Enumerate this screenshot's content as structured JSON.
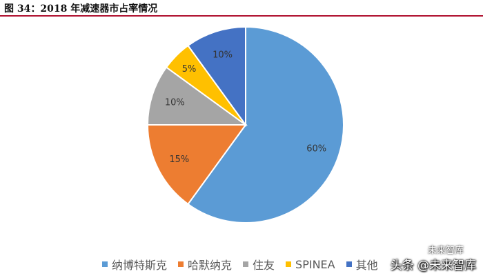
{
  "title": "图 34：2018 年减速器市占率情况",
  "chart_data": {
    "type": "pie",
    "categories": [
      "纳博特斯克",
      "哈默纳克",
      "住友",
      "SPINEA",
      "其他"
    ],
    "values": [
      60,
      15,
      10,
      5,
      10
    ],
    "data_labels": [
      "60%",
      "15%",
      "10%",
      "5%",
      "10%"
    ],
    "colors": [
      "#5b9bd5",
      "#ed7d31",
      "#a5a5a5",
      "#ffc000",
      "#4472c4"
    ],
    "legend_placement": "bottom",
    "start_angle_deg": 0,
    "direction": "clockwise"
  },
  "legend": {
    "items": [
      "纳博特斯克",
      "哈默纳克",
      "住友",
      "SPINEA",
      "其他"
    ]
  },
  "watermark": {
    "small": "未来智库",
    "main": "头条 @未来智库"
  }
}
